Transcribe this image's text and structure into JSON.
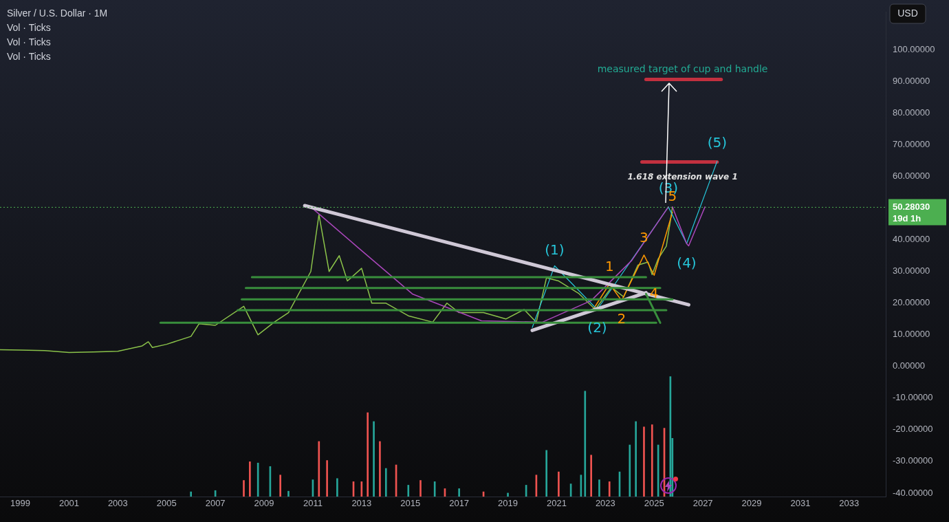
{
  "chart_data": {
    "type": "line",
    "title": "Silver / U.S. Dollar · 1M",
    "annotations": [
      "Vol · Ticks",
      "Vol · Ticks",
      "Vol · Ticks",
      "USD",
      "19d 1h",
      {
        "text": "(1)",
        "x": "2020-12",
        "y": 31.8
      },
      {
        "text": "(2)",
        "x": "2022-09",
        "y": 18
      },
      {
        "text": "(3)",
        "x": "2025-08",
        "y": 50.4
      },
      {
        "text": "(4)",
        "x": "2026-05",
        "y": 38.8
      },
      {
        "text": "(5)",
        "x": "2027-08",
        "y": 64.8
      },
      {
        "text": "1",
        "x": "2023-03",
        "y": 26.1
      },
      {
        "text": "2",
        "x": "2023-09",
        "y": 20.8
      },
      {
        "text": "3",
        "x": "2024-08",
        "y": 35.2
      },
      {
        "text": "4",
        "x": "2025-01",
        "y": 28.8
      },
      {
        "text": "5",
        "x": "2025-10",
        "y": 48.7
      },
      {
        "text": "1.618 extension wave 1",
        "x": "2026-03",
        "y": 64.6
      },
      {
        "text": "measured target of cup and handle",
        "x": "2026-03",
        "y": 90.7
      }
    ],
    "series": [
      {
        "color": "#8bc34a",
        "x": [
          "1998-03",
          "1999-01",
          "2000-01",
          "2001-01",
          "2002-01",
          "2003-01",
          "2004-01",
          "2004-04",
          "2004-06",
          "2005-01",
          "2006-01",
          "2006-05",
          "2007-01",
          "2008-03",
          "2008-10",
          "2009-06",
          "2010-01",
          "2010-12",
          "2011-04",
          "2011-09",
          "2012-02",
          "2012-06",
          "2013-01",
          "2013-06",
          "2014-01",
          "2014-12",
          "2015-12",
          "2016-07",
          "2017-01",
          "2018-01",
          "2018-12",
          "2019-09",
          "2020-03",
          "2020-08",
          "2021-02",
          "2021-12",
          "2022-08",
          "2023-04",
          "2023-10",
          "2024-05",
          "2024-10",
          "2024-12",
          "2025-03",
          "2025-07",
          "2025-09",
          "2025-10"
        ],
        "values": [
          5.3,
          5.2,
          5.0,
          4.4,
          4.6,
          4.8,
          6.5,
          7.8,
          6.0,
          7.0,
          9.5,
          13.5,
          13,
          19,
          10,
          14,
          17,
          30,
          48,
          30,
          35,
          27,
          31,
          20,
          20,
          16,
          14,
          20,
          17,
          17,
          15,
          18,
          14,
          28,
          27,
          23,
          18,
          25,
          22,
          32,
          33,
          29,
          34,
          38,
          46,
          50.3
        ]
      },
      {
        "type": "bar",
        "x": [
          "2006-01",
          "2007-01",
          "2008-03",
          "2008-06",
          "2008-10",
          "2009-04",
          "2009-09",
          "2010-01",
          "2011-01",
          "2011-04",
          "2011-08",
          "2012-01",
          "2012-09",
          "2013-01",
          "2013-04",
          "2013-07",
          "2013-10",
          "2014-01",
          "2014-06",
          "2014-12",
          "2015-06",
          "2016-01",
          "2016-06",
          "2017-01",
          "2018-01",
          "2019-01",
          "2019-10",
          "2020-03",
          "2020-08",
          "2021-02",
          "2021-08",
          "2022-01",
          "2022-03",
          "2022-06",
          "2022-10",
          "2023-03",
          "2023-08",
          "2024-01",
          "2024-04",
          "2024-08",
          "2024-12",
          "2025-03",
          "2025-06",
          "2025-09",
          "2025-10"
        ],
        "colors": [
          "#26a69a",
          "#26a69a",
          "#ef5350",
          "#ef5350",
          "#26a69a",
          "#26a69a",
          "#ef5350",
          "#26a69a",
          "#26a69a",
          "#ef5350",
          "#ef5350",
          "#26a69a",
          "#ef5350",
          "#ef5350",
          "#ef5350",
          "#26a69a",
          "#ef5350",
          "#26a69a",
          "#ef5350",
          "#26a69a",
          "#ef5350",
          "#26a69a",
          "#ef5350",
          "#26a69a",
          "#ef5350",
          "#26a69a",
          "#26a69a",
          "#ef5350",
          "#26a69a",
          "#ef5350",
          "#26a69a",
          "#26a69a",
          "#26a69a",
          "#ef5350",
          "#26a69a",
          "#ef5350",
          "#26a69a",
          "#26a69a",
          "#26a69a",
          "#ef5350",
          "#ef5350",
          "#26a69a",
          "#ef5350",
          "#26a69a",
          "#26a69a"
        ],
        "base": [
          -41.1,
          -41.1,
          -41.1,
          -41.1,
          -41.1,
          -41.1,
          -41.1,
          -41.1,
          -41.1,
          -41.1,
          -41.1,
          -41.1,
          -41.1,
          -41.1,
          -41.1,
          -41.1,
          -41.1,
          -41.1,
          -41.1,
          -41.1,
          -41.1,
          -41.1,
          -41.1,
          -41.1,
          -41.1,
          -41.1,
          -41.1,
          -41.1,
          -41.1,
          -41.1,
          -41.1,
          -41.1,
          -41.1,
          -41.1,
          -41.1,
          -41.1,
          -41.1,
          -41.1,
          -41.1,
          -41.1,
          -41.1,
          -41.1,
          -41.1,
          -41.1,
          -41.1
        ],
        "values": [
          1.5,
          1.9,
          5.1,
          11.0,
          10.6,
          9.5,
          6.8,
          1.7,
          5.3,
          17.4,
          11.4,
          5.7,
          4.7,
          4.7,
          26.5,
          23.7,
          17.4,
          8.9,
          10.0,
          3.6,
          5.1,
          4.7,
          2.5,
          2.5,
          1.5,
          1.1,
          3.6,
          6.8,
          14.6,
          7.8,
          4.0,
          6.8,
          33.3,
          13.1,
          5.3,
          4.7,
          7.8,
          16.3,
          23.7,
          22.0,
          22.7,
          16.3,
          21.6,
          37.9,
          18.4
        ]
      },
      {
        "color": "#388e3c",
        "x": [
          "2008-07",
          "2024-09"
        ],
        "values": [
          28.2,
          28.2
        ]
      },
      {
        "color": "#388e3c",
        "x": [
          "2008-04",
          "2025-04"
        ],
        "values": [
          24.8,
          24.8
        ]
      },
      {
        "color": "#388e3c",
        "x": [
          "2008-02",
          "2025-10"
        ],
        "values": [
          21.2,
          21.2
        ]
      },
      {
        "color": "#388e3c",
        "x": [
          "2007-12",
          "2025-07"
        ],
        "values": [
          17.8,
          17.8
        ]
      },
      {
        "color": "#388e3c",
        "x": [
          "2004-10",
          "2025-02"
        ],
        "values": [
          13.8,
          13.8
        ]
      },
      {
        "color": "#388e3c",
        "x": [
          "2024-09",
          "2025-04"
        ],
        "values": [
          22.9,
          13.8
        ]
      },
      {
        "color": "#cfc8d6",
        "x": [
          "2010-09",
          "2026-06"
        ],
        "values": [
          50.8,
          19.5
        ]
      },
      {
        "color": "#cfc8d6",
        "x": [
          "2020-01",
          "2024-09"
        ],
        "values": [
          11.4,
          23.3
        ]
      },
      {
        "color": "#ab47bc",
        "x": [
          "2010-12",
          "2012-11",
          "2015-02",
          "2017-12",
          "2020-06",
          "2022-06",
          "2024-02",
          "2025-08"
        ],
        "values": [
          50.4,
          37.7,
          22.9,
          14.4,
          14,
          20.8,
          33.5,
          50.4
        ]
      },
      {
        "color": "#ab47bc",
        "x": [
          "2025-10",
          "2026-05",
          "2026-06",
          "2027-02"
        ],
        "values": [
          50.4,
          38.8,
          38.1,
          50.4
        ]
      },
      {
        "color": "#26c6da",
        "x": [
          "2020-01",
          "2020-12",
          "2022-09",
          "2025-08",
          "2026-05",
          "2027-08"
        ],
        "values": [
          12.3,
          31.8,
          18,
          50.4,
          38.8,
          64.8
        ]
      },
      {
        "color": "#ff9800",
        "x": [
          "2022-07",
          "2023-03",
          "2023-09",
          "2024-08",
          "2025-01",
          "2025-10"
        ],
        "values": [
          18,
          26.1,
          20.8,
          35.2,
          28.8,
          48.7
        ]
      },
      {
        "color": "#c2303f",
        "x": [
          "2024-09",
          "2027-10"
        ],
        "values": [
          90.7,
          90.7
        ]
      },
      {
        "color": "#c2303f",
        "x": [
          "2024-07",
          "2027-08"
        ],
        "values": [
          64.6,
          64.6
        ]
      }
    ],
    "ref_lines": [
      {
        "axis": "y",
        "value": 50.2803,
        "label": "50.28030",
        "color": "#4caf50",
        "line_style": "dotted"
      }
    ],
    "xlim": [
      "1998-03",
      "2034-07"
    ],
    "xticks": [
      {
        "value": "1999",
        "label": "1999"
      },
      {
        "value": "2001",
        "label": "2001"
      },
      {
        "value": "2003",
        "label": "2003"
      },
      {
        "value": "2005",
        "label": "2005"
      },
      {
        "value": "2007",
        "label": "2007"
      },
      {
        "value": "2009",
        "label": "2009"
      },
      {
        "value": "2011",
        "label": "2011"
      },
      {
        "value": "2013",
        "label": "2013"
      },
      {
        "value": "2015",
        "label": "2015"
      },
      {
        "value": "2017",
        "label": "2017"
      },
      {
        "value": "2019",
        "label": "2019"
      },
      {
        "value": "2021",
        "label": "2021"
      },
      {
        "value": "2023",
        "label": "2023"
      },
      {
        "value": "2025",
        "label": "2025"
      },
      {
        "value": "2027",
        "label": "2027"
      },
      {
        "value": "2029",
        "label": "2029"
      },
      {
        "value": "2031",
        "label": "2031"
      },
      {
        "value": "2033",
        "label": "2033"
      }
    ],
    "ylim": [
      -41.1,
      111.9
    ],
    "yticks": [
      {
        "value": 100,
        "label": "100.00000"
      },
      {
        "value": 90,
        "label": "90.00000"
      },
      {
        "value": 80,
        "label": "80.00000"
      },
      {
        "value": 70,
        "label": "70.00000"
      },
      {
        "value": 60,
        "label": "60.00000"
      },
      {
        "value": 40,
        "label": "40.00000"
      },
      {
        "value": 30,
        "label": "30.00000"
      },
      {
        "value": 20,
        "label": "20.00000"
      },
      {
        "value": 10,
        "label": "10.00000"
      },
      {
        "value": 0,
        "label": "0.00000"
      },
      {
        "value": -10,
        "label": "-10.00000"
      },
      {
        "value": -20,
        "label": "-20.00000"
      },
      {
        "value": -30,
        "label": "-30.00000"
      },
      {
        "value": -40,
        "label": "-40.00000"
      }
    ],
    "grid": false,
    "legend": false,
    "marker": "none",
    "line_style": "solid"
  }
}
